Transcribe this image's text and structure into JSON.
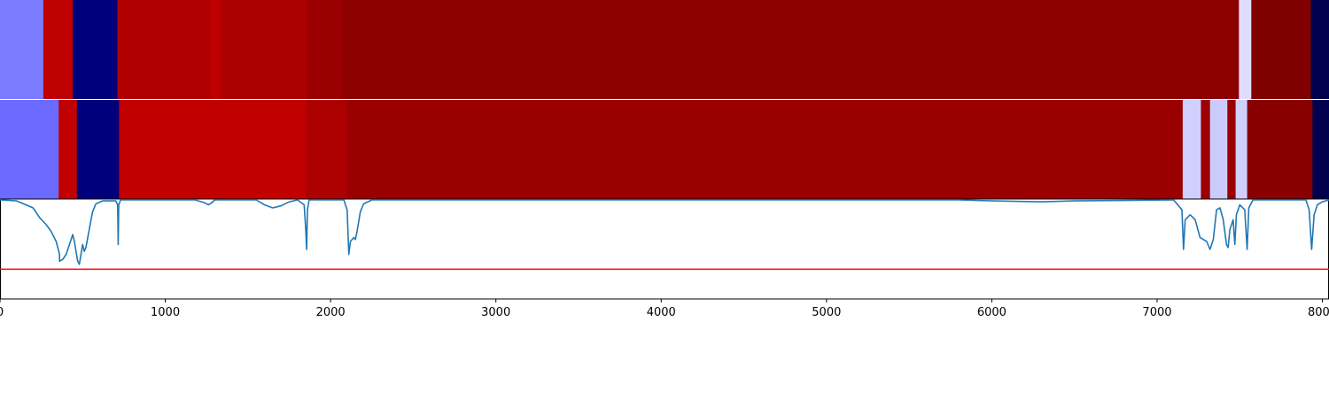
{
  "chart_data": {
    "type": "heatmap",
    "x_range": [
      0,
      8040
    ],
    "xticks": [
      {
        "value": 0,
        "label": "0"
      },
      {
        "value": 1000,
        "label": "1000"
      },
      {
        "value": 2000,
        "label": "2000"
      },
      {
        "value": 3000,
        "label": "3000"
      },
      {
        "value": 4000,
        "label": "4000"
      },
      {
        "value": 5000,
        "label": "5000"
      },
      {
        "value": 6000,
        "label": "6000"
      },
      {
        "value": 7000,
        "label": "7000"
      },
      {
        "value": 8000,
        "label": "8000"
      }
    ],
    "tracks": [
      {
        "segments": [
          {
            "start": 0,
            "end": 262,
            "color": "#7b7bff"
          },
          {
            "start": 262,
            "end": 440,
            "color": "#bf0000"
          },
          {
            "start": 440,
            "end": 710,
            "color": "#00007a"
          },
          {
            "start": 710,
            "end": 1275,
            "color": "#b10000"
          },
          {
            "start": 1275,
            "end": 1340,
            "color": "#bf0000"
          },
          {
            "start": 1340,
            "end": 1860,
            "color": "#aa0000"
          },
          {
            "start": 1860,
            "end": 2070,
            "color": "#9b0000"
          },
          {
            "start": 2070,
            "end": 7495,
            "color": "#8c0000"
          },
          {
            "start": 7495,
            "end": 7570,
            "color": "#dedefc"
          },
          {
            "start": 7570,
            "end": 7930,
            "color": "#800000"
          },
          {
            "start": 7930,
            "end": 8040,
            "color": "#00004e"
          }
        ]
      },
      {
        "segments": [
          {
            "start": 0,
            "end": 355,
            "color": "#6b6bff"
          },
          {
            "start": 355,
            "end": 465,
            "color": "#c20000"
          },
          {
            "start": 465,
            "end": 720,
            "color": "#00007a"
          },
          {
            "start": 720,
            "end": 1850,
            "color": "#c10000"
          },
          {
            "start": 1850,
            "end": 2100,
            "color": "#ad0000"
          },
          {
            "start": 2100,
            "end": 7155,
            "color": "#9b0000"
          },
          {
            "start": 7155,
            "end": 7265,
            "color": "#d0d0fc"
          },
          {
            "start": 7265,
            "end": 7320,
            "color": "#9b0000"
          },
          {
            "start": 7320,
            "end": 7425,
            "color": "#ccccfc"
          },
          {
            "start": 7425,
            "end": 7475,
            "color": "#9b0000"
          },
          {
            "start": 7475,
            "end": 7545,
            "color": "#d0d0fc"
          },
          {
            "start": 7545,
            "end": 7940,
            "color": "#880000"
          },
          {
            "start": 7940,
            "end": 8040,
            "color": "#00004e"
          }
        ]
      }
    ],
    "line_series": {
      "color": "#1f77b4",
      "points": [
        [
          0,
          0.0
        ],
        [
          100,
          -0.01
        ],
        [
          200,
          -0.08
        ],
        [
          240,
          -0.18
        ],
        [
          280,
          -0.25
        ],
        [
          310,
          -0.32
        ],
        [
          340,
          -0.42
        ],
        [
          360,
          -0.55
        ],
        [
          360,
          -0.62
        ],
        [
          380,
          -0.6
        ],
        [
          400,
          -0.55
        ],
        [
          420,
          -0.45
        ],
        [
          440,
          -0.35
        ],
        [
          450,
          -0.42
        ],
        [
          460,
          -0.52
        ],
        [
          470,
          -0.62
        ],
        [
          480,
          -0.65
        ],
        [
          490,
          -0.55
        ],
        [
          500,
          -0.45
        ],
        [
          510,
          -0.52
        ],
        [
          520,
          -0.48
        ],
        [
          540,
          -0.3
        ],
        [
          560,
          -0.12
        ],
        [
          580,
          -0.04
        ],
        [
          620,
          -0.01
        ],
        [
          700,
          -0.01
        ],
        [
          712,
          -0.05
        ],
        [
          715,
          -0.45
        ],
        [
          718,
          -0.05
        ],
        [
          730,
          0.0
        ],
        [
          1180,
          0.0
        ],
        [
          1240,
          -0.03
        ],
        [
          1260,
          -0.05
        ],
        [
          1280,
          -0.03
        ],
        [
          1300,
          0.0
        ],
        [
          1550,
          0.0
        ],
        [
          1600,
          -0.05
        ],
        [
          1650,
          -0.08
        ],
        [
          1700,
          -0.06
        ],
        [
          1750,
          -0.02
        ],
        [
          1800,
          0.0
        ],
        [
          1840,
          -0.05
        ],
        [
          1850,
          -0.3
        ],
        [
          1855,
          -0.5
        ],
        [
          1860,
          -0.1
        ],
        [
          1870,
          0.0
        ],
        [
          2080,
          0.0
        ],
        [
          2100,
          -0.1
        ],
        [
          2110,
          -0.55
        ],
        [
          2120,
          -0.42
        ],
        [
          2140,
          -0.38
        ],
        [
          2150,
          -0.4
        ],
        [
          2160,
          -0.32
        ],
        [
          2180,
          -0.12
        ],
        [
          2200,
          -0.04
        ],
        [
          2250,
          0.0
        ],
        [
          5800,
          0.0
        ],
        [
          6000,
          -0.01
        ],
        [
          6300,
          -0.02
        ],
        [
          6500,
          -0.01
        ],
        [
          7100,
          0.0
        ],
        [
          7150,
          -0.1
        ],
        [
          7160,
          -0.5
        ],
        [
          7170,
          -0.2
        ],
        [
          7200,
          -0.15
        ],
        [
          7230,
          -0.2
        ],
        [
          7260,
          -0.38
        ],
        [
          7280,
          -0.4
        ],
        [
          7300,
          -0.42
        ],
        [
          7320,
          -0.5
        ],
        [
          7340,
          -0.4
        ],
        [
          7360,
          -0.1
        ],
        [
          7380,
          -0.08
        ],
        [
          7400,
          -0.2
        ],
        [
          7420,
          -0.45
        ],
        [
          7430,
          -0.48
        ],
        [
          7440,
          -0.3
        ],
        [
          7460,
          -0.2
        ],
        [
          7470,
          -0.45
        ],
        [
          7480,
          -0.15
        ],
        [
          7500,
          -0.05
        ],
        [
          7530,
          -0.1
        ],
        [
          7545,
          -0.5
        ],
        [
          7555,
          -0.08
        ],
        [
          7580,
          0.0
        ],
        [
          7900,
          0.0
        ],
        [
          7920,
          -0.1
        ],
        [
          7935,
          -0.5
        ],
        [
          7950,
          -0.15
        ],
        [
          7970,
          -0.05
        ],
        [
          8000,
          -0.02
        ],
        [
          8040,
          0.0
        ]
      ]
    },
    "reference_line": {
      "y": -0.7,
      "color": "#ff0000"
    },
    "line_ylim": [
      -1.0,
      0.0
    ]
  }
}
